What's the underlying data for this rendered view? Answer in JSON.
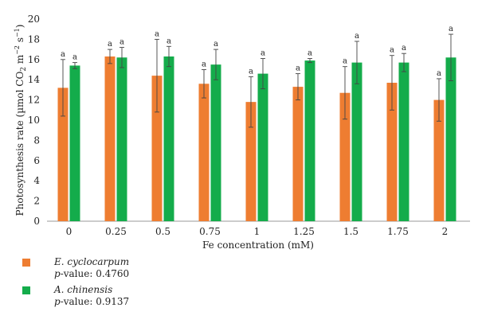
{
  "chart_data": {
    "type": "bar",
    "xlabel": "Fe concentration (mM)",
    "ylabel": {
      "prefix": "Photosynthesis rate (µmol CO",
      "sub": "2",
      "mid1": " m",
      "sup1": "−2",
      "mid2": " s",
      "sup2": "−1",
      "suffix": ")"
    },
    "ylim": [
      0,
      20
    ],
    "yticks": [
      "0",
      "2",
      "4",
      "6",
      "8",
      "10",
      "12",
      "14",
      "16",
      "18",
      "20"
    ],
    "categories": [
      "0",
      "0.25",
      "0.5",
      "0.75",
      "1",
      "1.25",
      "1.5",
      "1.75",
      "2"
    ],
    "series": [
      {
        "name": "E. cyclocarpum",
        "color": "#ee7d31",
        "values": [
          13.2,
          16.3,
          14.4,
          13.6,
          11.8,
          13.3,
          12.7,
          13.7,
          12.0
        ],
        "errors": [
          2.8,
          0.7,
          3.6,
          1.4,
          2.5,
          1.3,
          2.6,
          2.7,
          2.1
        ],
        "labels": [
          "a",
          "a",
          "a",
          "a",
          "a",
          "a",
          "a",
          "a",
          "a"
        ]
      },
      {
        "name": "A. chinensis",
        "color": "#14ac4b",
        "values": [
          15.4,
          16.2,
          16.3,
          15.5,
          14.6,
          15.9,
          15.7,
          15.7,
          16.2
        ],
        "errors": [
          0.3,
          1.0,
          1.0,
          1.5,
          1.5,
          0.2,
          2.1,
          0.9,
          2.3
        ],
        "labels": [
          "a",
          "a",
          "a",
          "a",
          "a",
          "a",
          "a",
          "a",
          "a"
        ]
      }
    ],
    "grid": false,
    "legend_position": "bottom-left"
  },
  "legend": [
    {
      "species": "E. cyclocarpum",
      "pvalue_label": "p",
      "pvalue_text": "-value: 0.4760",
      "color": "#ee7d31"
    },
    {
      "species": "A. chinensis",
      "pvalue_label": "p",
      "pvalue_text": "-value: 0.9137",
      "color": "#14ac4b"
    }
  ]
}
